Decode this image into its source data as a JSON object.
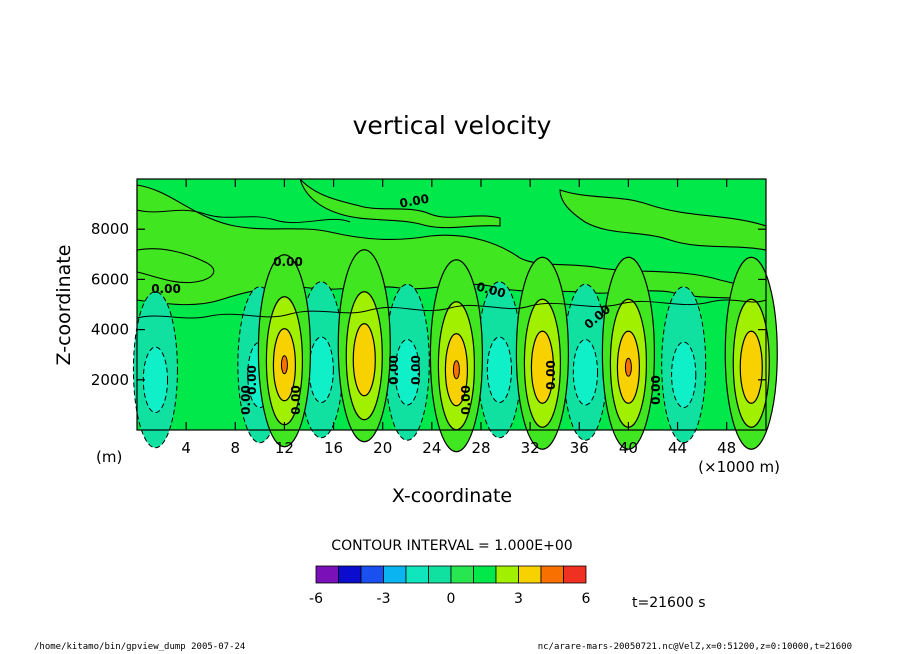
{
  "chart_data": {
    "type": "heatmap",
    "title": "vertical velocity",
    "xlabel": "X-coordinate",
    "ylabel": "Z-coordinate",
    "x_unit": "(×1000 m)",
    "y_unit": "(m)",
    "xlim": [
      0,
      51.2
    ],
    "ylim": [
      0,
      10000
    ],
    "x_ticks": [
      4,
      8,
      12,
      16,
      20,
      24,
      28,
      32,
      36,
      40,
      44,
      48
    ],
    "y_ticks": [
      2000,
      4000,
      6000,
      8000
    ],
    "contour_interval_text": "CONTOUR INTERVAL = 1.000E+00",
    "contour_labels": [
      "0.00",
      "0.00",
      "0.00",
      "0.00",
      "0.00",
      "0.00",
      "0.00",
      "0.00",
      "0.00",
      "0.00",
      "0.00",
      "0.00",
      "0.00"
    ],
    "colorbar": {
      "levels": [
        -6,
        -5,
        -4,
        -3,
        -2,
        -1,
        0,
        1,
        2,
        3,
        4,
        5,
        6
      ],
      "tick_labels": [
        "-6",
        "-3",
        "0",
        "3",
        "6"
      ],
      "tick_values": [
        -6,
        -3,
        0,
        3,
        6
      ],
      "colors": [
        "#7a10b8",
        "#0c0ccf",
        "#1a50f0",
        "#0ab4f0",
        "#10e6be",
        "#10e0a0",
        "#28e650",
        "#00e84a",
        "#a0f000",
        "#f8d200",
        "#f87000",
        "#f03020",
        "#f8a0a0"
      ]
    },
    "fill_colors": {
      "min3": "#0ab4f0",
      "neg2": "#10f0c8",
      "neg1": "#10e0a0",
      "zero": "#00e84a",
      "pos1": "#40e620",
      "pos2": "#a0f000",
      "pos3": "#f8d200",
      "pos4": "#f87000"
    },
    "updraft_cores": [
      {
        "x": 12.0,
        "z": 2600,
        "peak": 3.5
      },
      {
        "x": 18.5,
        "z": 2800,
        "peak": 3.2
      },
      {
        "x": 26.0,
        "z": 2400,
        "peak": 3.8
      },
      {
        "x": 33.0,
        "z": 2500,
        "peak": 3.1
      },
      {
        "x": 40.0,
        "z": 2500,
        "peak": 3.7
      },
      {
        "x": 50.0,
        "z": 2500,
        "peak": 3.1
      }
    ],
    "downdraft_cores": [
      {
        "x": 1.5,
        "z": 2000,
        "peak": -1.6
      },
      {
        "x": 10.0,
        "z": 2200,
        "peak": -1.4
      },
      {
        "x": 15.0,
        "z": 2400,
        "peak": -1.8
      },
      {
        "x": 22.0,
        "z": 2300,
        "peak": -1.5
      },
      {
        "x": 29.5,
        "z": 2400,
        "peak": -1.7
      },
      {
        "x": 36.5,
        "z": 2300,
        "peak": -1.8
      },
      {
        "x": 44.5,
        "z": 2200,
        "peak": -1.6
      }
    ]
  },
  "time_label": "t=21600 s",
  "footer_left": "/home/kitamo/bin/gpview_dump   2005-07-24",
  "footer_right": "nc/arare-mars-20050721.nc@VelZ,x=0:51200,z=0:10000,t=21600"
}
